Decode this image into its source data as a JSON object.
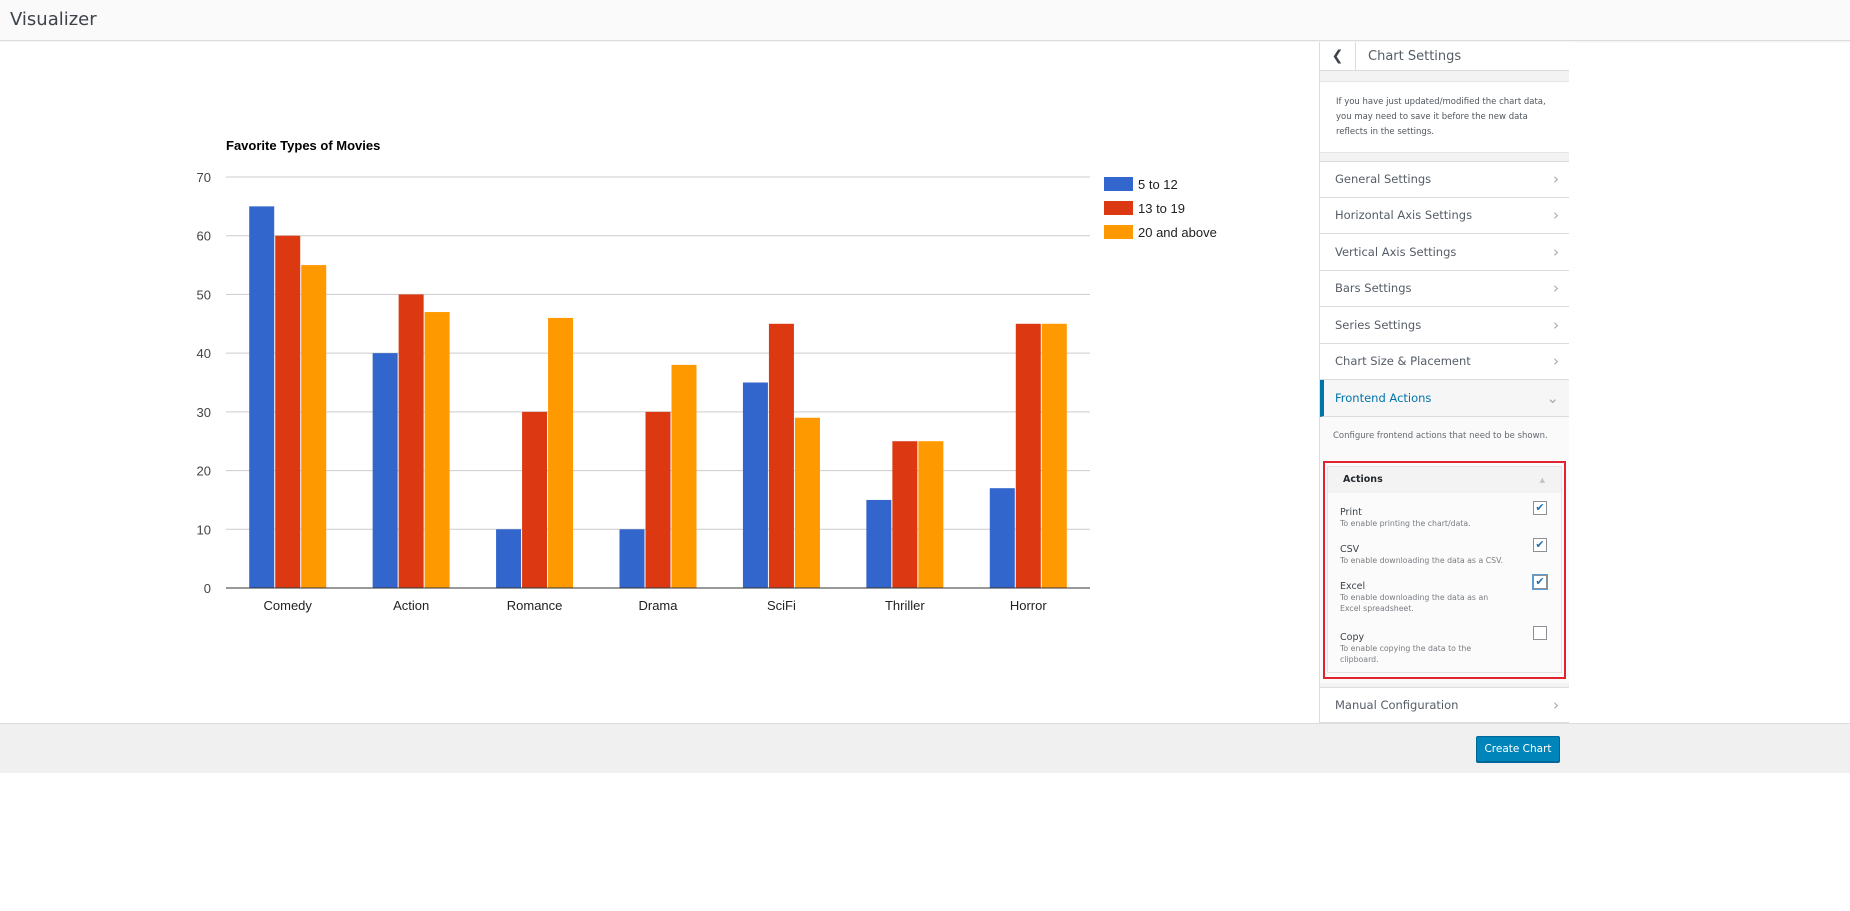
{
  "app": {
    "title": "Visualizer"
  },
  "chart_data": {
    "type": "bar",
    "title": "Favorite Types of Movies",
    "xlabel": "",
    "ylabel": "",
    "ylim": [
      0,
      70
    ],
    "yticks": [
      0,
      10,
      20,
      30,
      40,
      50,
      60,
      70
    ],
    "grid": true,
    "legend_position": "right",
    "categories": [
      "Comedy",
      "Action",
      "Romance",
      "Drama",
      "SciFi",
      "Thriller",
      "Horror"
    ],
    "series": [
      {
        "name": "5 to 12",
        "color": "#3366cc",
        "values": [
          65,
          40,
          10,
          10,
          35,
          15,
          17
        ]
      },
      {
        "name": "13 to 19",
        "color": "#dc3912",
        "values": [
          60,
          50,
          30,
          30,
          45,
          25,
          45
        ]
      },
      {
        "name": "20 and above",
        "color": "#ff9900",
        "values": [
          55,
          47,
          46,
          38,
          29,
          25,
          45
        ]
      }
    ]
  },
  "sidebar": {
    "header_title": "Chart Settings",
    "back_icon": "chevron-left-icon",
    "notice": "If you have just updated/modified the chart data, you may need to save it before the new data reflects in the settings.",
    "sections": [
      {
        "label": "General Settings"
      },
      {
        "label": "Horizontal Axis Settings"
      },
      {
        "label": "Vertical Axis Settings"
      },
      {
        "label": "Bars Settings"
      },
      {
        "label": "Series Settings"
      },
      {
        "label": "Chart Size & Placement"
      }
    ],
    "active_section": {
      "label": "Frontend Actions",
      "description": "Configure frontend actions that need to be shown.",
      "group_title": "Actions",
      "actions": [
        {
          "label": "Print",
          "hint": "To enable printing the chart/data.",
          "checked": true
        },
        {
          "label": "CSV",
          "hint": "To enable downloading the data as a CSV.",
          "checked": true
        },
        {
          "label": "Excel",
          "hint": "To enable downloading the data as an Excel spreadsheet.",
          "checked": true
        },
        {
          "label": "Copy",
          "hint": "To enable copying the data to the clipboard.",
          "checked": false
        }
      ]
    },
    "manual_config": {
      "label": "Manual Configuration"
    }
  },
  "footer": {
    "create_label": "Create Chart"
  },
  "colors": {
    "accent": "#0073aa",
    "button": "#0085ba",
    "highlight_border": "#e0232e"
  }
}
